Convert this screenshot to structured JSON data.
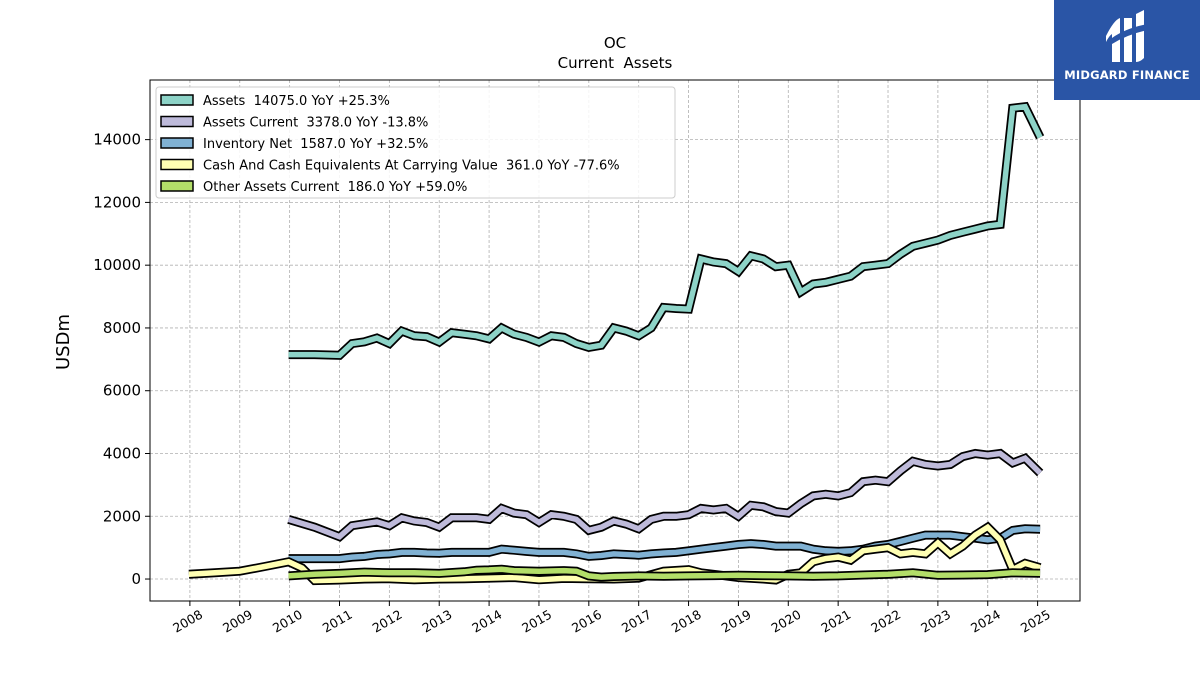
{
  "brand": {
    "name": "MIDGARD FINANCE",
    "color": "#2a55a6",
    "icon": "midgard-logo-icon"
  },
  "chart_data": {
    "type": "line",
    "title": "OC",
    "subtitle": "Current  Assets",
    "ylabel": "USDm",
    "xlabel": "",
    "xlim": [
      2007.2,
      2025.85
    ],
    "ylim": [
      -700,
      15900
    ],
    "x_ticks": [
      2008,
      2009,
      2010,
      2011,
      2012,
      2013,
      2014,
      2015,
      2016,
      2017,
      2018,
      2019,
      2020,
      2021,
      2022,
      2023,
      2024,
      2025
    ],
    "y_ticks": [
      0,
      2000,
      4000,
      6000,
      8000,
      10000,
      12000,
      14000
    ],
    "grid": true,
    "legend_position": "top-left",
    "series": [
      {
        "name": "Assets  14075.0 YoY +25.3%",
        "color": "#8dd3c7",
        "points": [
          [
            2009.98,
            7150
          ],
          [
            2010.5,
            7150
          ],
          [
            2011.0,
            7130
          ],
          [
            2011.25,
            7500
          ],
          [
            2011.5,
            7560
          ],
          [
            2011.75,
            7680
          ],
          [
            2012.0,
            7500
          ],
          [
            2012.25,
            7900
          ],
          [
            2012.5,
            7750
          ],
          [
            2012.75,
            7720
          ],
          [
            2013.0,
            7550
          ],
          [
            2013.25,
            7850
          ],
          [
            2013.5,
            7800
          ],
          [
            2013.75,
            7750
          ],
          [
            2014.0,
            7650
          ],
          [
            2014.25,
            8000
          ],
          [
            2014.5,
            7800
          ],
          [
            2014.75,
            7700
          ],
          [
            2015.0,
            7550
          ],
          [
            2015.25,
            7750
          ],
          [
            2015.5,
            7700
          ],
          [
            2015.75,
            7500
          ],
          [
            2016.0,
            7380
          ],
          [
            2016.25,
            7450
          ],
          [
            2016.5,
            8000
          ],
          [
            2016.75,
            7900
          ],
          [
            2017.0,
            7750
          ],
          [
            2017.25,
            8000
          ],
          [
            2017.5,
            8650
          ],
          [
            2017.75,
            8620
          ],
          [
            2018.0,
            8600
          ],
          [
            2018.25,
            10200
          ],
          [
            2018.5,
            10100
          ],
          [
            2018.75,
            10050
          ],
          [
            2019.0,
            9800
          ],
          [
            2019.25,
            10300
          ],
          [
            2019.5,
            10200
          ],
          [
            2019.75,
            9950
          ],
          [
            2020.0,
            10000
          ],
          [
            2020.25,
            9150
          ],
          [
            2020.5,
            9400
          ],
          [
            2020.75,
            9450
          ],
          [
            2021.0,
            9550
          ],
          [
            2021.25,
            9650
          ],
          [
            2021.5,
            9950
          ],
          [
            2021.75,
            10000
          ],
          [
            2022.0,
            10050
          ],
          [
            2022.25,
            10350
          ],
          [
            2022.5,
            10600
          ],
          [
            2022.75,
            10700
          ],
          [
            2023.0,
            10800
          ],
          [
            2023.25,
            10950
          ],
          [
            2023.5,
            11050
          ],
          [
            2023.75,
            11150
          ],
          [
            2024.0,
            11250
          ],
          [
            2024.25,
            11300
          ],
          [
            2024.5,
            15000
          ],
          [
            2024.75,
            15050
          ],
          [
            2025.05,
            14075
          ]
        ]
      },
      {
        "name": "Assets Current  3378.0 YoY -13.8%",
        "color": "#bebada",
        "points": [
          [
            2009.98,
            1900
          ],
          [
            2010.5,
            1650
          ],
          [
            2011.0,
            1350
          ],
          [
            2011.25,
            1700
          ],
          [
            2011.5,
            1760
          ],
          [
            2011.75,
            1820
          ],
          [
            2012.0,
            1700
          ],
          [
            2012.25,
            1950
          ],
          [
            2012.5,
            1850
          ],
          [
            2012.75,
            1800
          ],
          [
            2013.0,
            1650
          ],
          [
            2013.25,
            1950
          ],
          [
            2013.5,
            1950
          ],
          [
            2013.75,
            1950
          ],
          [
            2014.0,
            1900
          ],
          [
            2014.25,
            2250
          ],
          [
            2014.5,
            2100
          ],
          [
            2014.75,
            2050
          ],
          [
            2015.0,
            1800
          ],
          [
            2015.25,
            2050
          ],
          [
            2015.5,
            2000
          ],
          [
            2015.75,
            1900
          ],
          [
            2016.0,
            1550
          ],
          [
            2016.25,
            1650
          ],
          [
            2016.5,
            1850
          ],
          [
            2016.75,
            1750
          ],
          [
            2017.0,
            1600
          ],
          [
            2017.25,
            1900
          ],
          [
            2017.5,
            2000
          ],
          [
            2017.75,
            2000
          ],
          [
            2018.0,
            2050
          ],
          [
            2018.25,
            2250
          ],
          [
            2018.5,
            2200
          ],
          [
            2018.75,
            2250
          ],
          [
            2019.0,
            2000
          ],
          [
            2019.25,
            2350
          ],
          [
            2019.5,
            2300
          ],
          [
            2019.75,
            2150
          ],
          [
            2020.0,
            2100
          ],
          [
            2020.25,
            2400
          ],
          [
            2020.5,
            2650
          ],
          [
            2020.75,
            2700
          ],
          [
            2021.0,
            2650
          ],
          [
            2021.25,
            2750
          ],
          [
            2021.5,
            3100
          ],
          [
            2021.75,
            3150
          ],
          [
            2022.0,
            3100
          ],
          [
            2022.25,
            3450
          ],
          [
            2022.5,
            3750
          ],
          [
            2022.75,
            3650
          ],
          [
            2023.0,
            3600
          ],
          [
            2023.25,
            3650
          ],
          [
            2023.5,
            3900
          ],
          [
            2023.75,
            4000
          ],
          [
            2024.0,
            3950
          ],
          [
            2024.25,
            4000
          ],
          [
            2024.5,
            3700
          ],
          [
            2024.75,
            3850
          ],
          [
            2025.05,
            3378
          ]
        ]
      },
      {
        "name": "Inventory Net  1587.0 YoY +32.5%",
        "color": "#80b1d3",
        "points": [
          [
            2009.98,
            650
          ],
          [
            2010.5,
            650
          ],
          [
            2011.0,
            650
          ],
          [
            2011.25,
            700
          ],
          [
            2011.5,
            720
          ],
          [
            2011.75,
            780
          ],
          [
            2012.0,
            800
          ],
          [
            2012.25,
            850
          ],
          [
            2012.5,
            850
          ],
          [
            2012.75,
            830
          ],
          [
            2013.0,
            820
          ],
          [
            2013.25,
            850
          ],
          [
            2013.5,
            850
          ],
          [
            2013.75,
            850
          ],
          [
            2014.0,
            850
          ],
          [
            2014.25,
            950
          ],
          [
            2014.5,
            920
          ],
          [
            2014.75,
            880
          ],
          [
            2015.0,
            850
          ],
          [
            2015.25,
            850
          ],
          [
            2015.5,
            850
          ],
          [
            2015.75,
            800
          ],
          [
            2016.0,
            720
          ],
          [
            2016.25,
            750
          ],
          [
            2016.5,
            800
          ],
          [
            2016.75,
            780
          ],
          [
            2017.0,
            760
          ],
          [
            2017.25,
            800
          ],
          [
            2017.5,
            830
          ],
          [
            2017.75,
            850
          ],
          [
            2018.0,
            900
          ],
          [
            2018.25,
            950
          ],
          [
            2018.5,
            1000
          ],
          [
            2018.75,
            1050
          ],
          [
            2019.0,
            1100
          ],
          [
            2019.25,
            1130
          ],
          [
            2019.5,
            1100
          ],
          [
            2019.75,
            1050
          ],
          [
            2020.0,
            1050
          ],
          [
            2020.25,
            1050
          ],
          [
            2020.5,
            950
          ],
          [
            2020.75,
            900
          ],
          [
            2021.0,
            880
          ],
          [
            2021.25,
            900
          ],
          [
            2021.5,
            950
          ],
          [
            2021.75,
            1050
          ],
          [
            2022.0,
            1100
          ],
          [
            2022.25,
            1200
          ],
          [
            2022.5,
            1300
          ],
          [
            2022.75,
            1400
          ],
          [
            2023.0,
            1400
          ],
          [
            2023.25,
            1400
          ],
          [
            2023.5,
            1350
          ],
          [
            2023.75,
            1300
          ],
          [
            2024.0,
            1250
          ],
          [
            2024.25,
            1300
          ],
          [
            2024.5,
            1550
          ],
          [
            2024.75,
            1600
          ],
          [
            2025.05,
            1587
          ]
        ]
      },
      {
        "name": "Cash And Cash Equivalents At Carrying Value  361.0 YoY -77.6%",
        "color": "#ffffb3",
        "points": [
          [
            2007.98,
            150
          ],
          [
            2008.5,
            200
          ],
          [
            2009.0,
            250
          ],
          [
            2009.5,
            400
          ],
          [
            2009.98,
            550
          ],
          [
            2010.25,
            350
          ],
          [
            2010.5,
            -50
          ],
          [
            2011.0,
            -30
          ],
          [
            2011.5,
            0
          ],
          [
            2012.0,
            10
          ],
          [
            2012.5,
            -20
          ],
          [
            2013.0,
            0
          ],
          [
            2013.5,
            10
          ],
          [
            2014.0,
            30
          ],
          [
            2014.5,
            50
          ],
          [
            2015.0,
            -20
          ],
          [
            2015.5,
            20
          ],
          [
            2016.0,
            10
          ],
          [
            2016.5,
            0
          ],
          [
            2017.0,
            30
          ],
          [
            2017.5,
            250
          ],
          [
            2018.0,
            300
          ],
          [
            2018.25,
            200
          ],
          [
            2018.5,
            150
          ],
          [
            2018.75,
            100
          ],
          [
            2019.0,
            50
          ],
          [
            2019.5,
            0
          ],
          [
            2019.75,
            -30
          ],
          [
            2020.0,
            150
          ],
          [
            2020.25,
            200
          ],
          [
            2020.5,
            550
          ],
          [
            2020.75,
            650
          ],
          [
            2021.0,
            700
          ],
          [
            2021.25,
            600
          ],
          [
            2021.5,
            900
          ],
          [
            2021.75,
            950
          ],
          [
            2022.0,
            1000
          ],
          [
            2022.25,
            800
          ],
          [
            2022.5,
            850
          ],
          [
            2022.75,
            800
          ],
          [
            2023.0,
            1150
          ],
          [
            2023.25,
            800
          ],
          [
            2023.5,
            1050
          ],
          [
            2023.75,
            1400
          ],
          [
            2024.0,
            1650
          ],
          [
            2024.25,
            1250
          ],
          [
            2024.5,
            300
          ],
          [
            2024.75,
            500
          ],
          [
            2025.05,
            361
          ]
        ]
      },
      {
        "name": "Other Assets Current  186.0 YoY +59.0%",
        "color": "#b3de69",
        "points": [
          [
            2009.98,
            100
          ],
          [
            2010.5,
            150
          ],
          [
            2011.0,
            180
          ],
          [
            2011.5,
            220
          ],
          [
            2012.0,
            200
          ],
          [
            2012.5,
            200
          ],
          [
            2013.0,
            180
          ],
          [
            2013.5,
            230
          ],
          [
            2013.75,
            280
          ],
          [
            2014.0,
            290
          ],
          [
            2014.25,
            310
          ],
          [
            2014.5,
            270
          ],
          [
            2015.0,
            250
          ],
          [
            2015.5,
            270
          ],
          [
            2015.75,
            250
          ],
          [
            2016.0,
            100
          ],
          [
            2016.25,
            60
          ],
          [
            2016.5,
            80
          ],
          [
            2017.0,
            100
          ],
          [
            2017.5,
            90
          ],
          [
            2018.0,
            100
          ],
          [
            2018.5,
            110
          ],
          [
            2019.0,
            120
          ],
          [
            2019.5,
            110
          ],
          [
            2020.0,
            100
          ],
          [
            2020.5,
            90
          ],
          [
            2021.0,
            100
          ],
          [
            2021.5,
            130
          ],
          [
            2022.0,
            150
          ],
          [
            2022.5,
            200
          ],
          [
            2023.0,
            120
          ],
          [
            2023.5,
            130
          ],
          [
            2024.0,
            140
          ],
          [
            2024.5,
            200
          ],
          [
            2025.05,
            186
          ]
        ]
      }
    ]
  }
}
